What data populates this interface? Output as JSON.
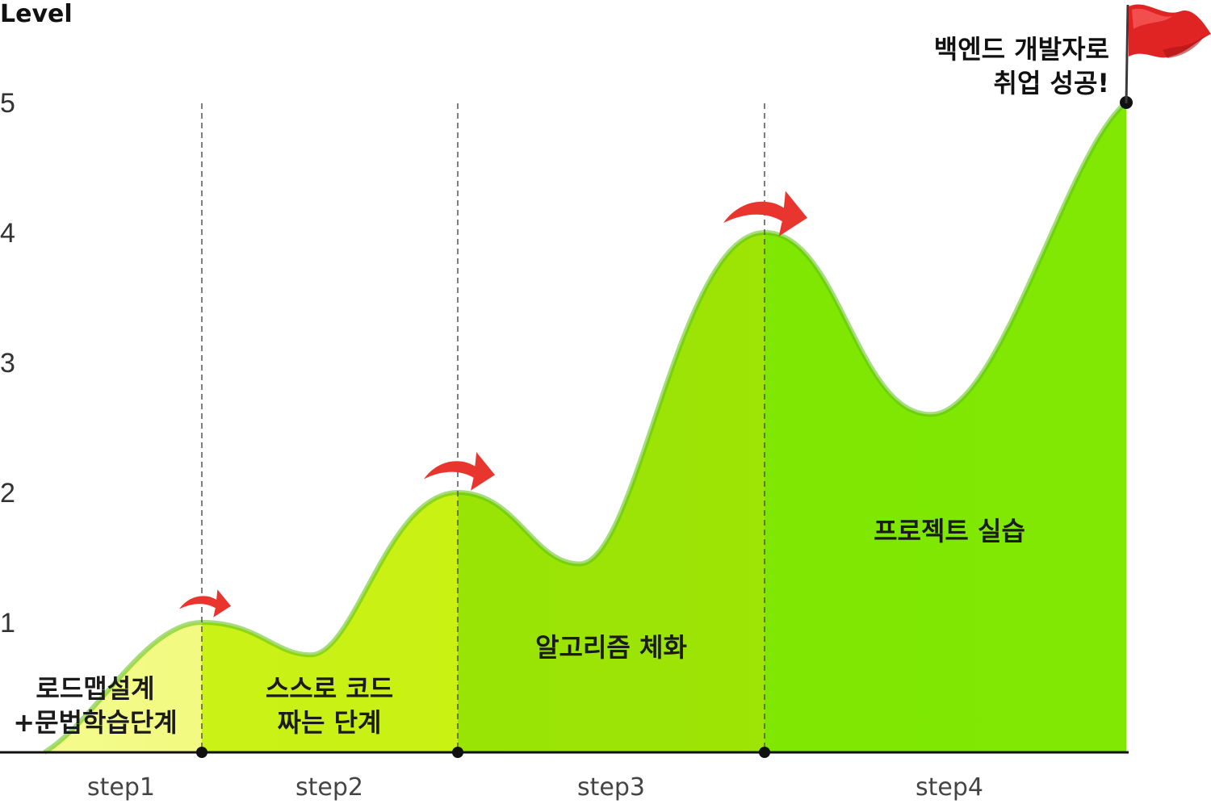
{
  "chart_data": {
    "type": "area",
    "ylabel": "Level",
    "yticks": [
      "1",
      "2",
      "3",
      "4",
      "5"
    ],
    "ylim": [
      0,
      5
    ],
    "steps": [
      "step1",
      "step2",
      "step3",
      "step4"
    ],
    "phase_labels": [
      [
        "로드맵설계",
        "+문법학습단계"
      ],
      [
        "스스로 코드",
        "짜는 단계"
      ],
      [
        "알고리즘 체화"
      ],
      [
        "프로젝트 실습"
      ]
    ],
    "goal_label": [
      "백엔드 개발자로",
      "취업 성공!"
    ],
    "curve": {
      "peaks": [
        1.0,
        2.0,
        4.0,
        5.0
      ],
      "valleys": [
        0.75,
        1.45,
        2.6
      ]
    }
  },
  "colors": {
    "step1": "#ecf75a",
    "step2": "#c7f00c",
    "step3": "#9ee606",
    "step4": "#7ee600",
    "arrow": "#e8362e",
    "flag": "#e32626",
    "axis": "#111111"
  },
  "icons": {
    "transition": "curved-arrow-right-icon",
    "goal": "red-flag-icon"
  }
}
